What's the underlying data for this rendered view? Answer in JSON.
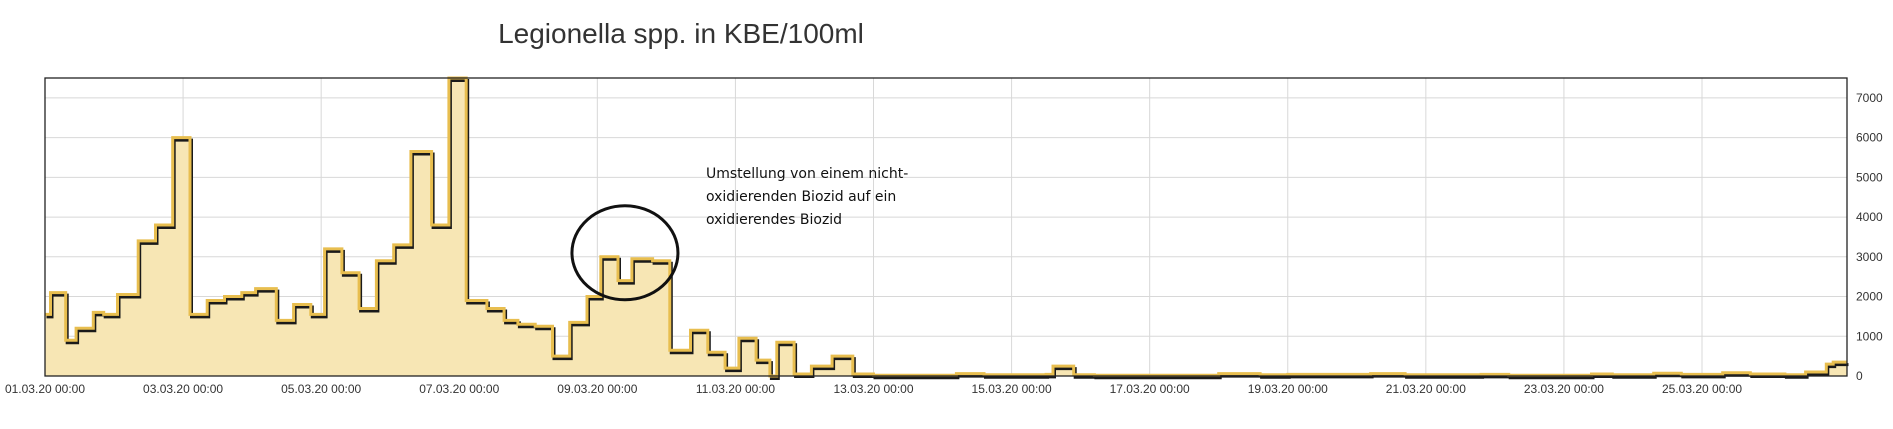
{
  "chart_data": {
    "type": "area",
    "title": "Legionella spp. in KBE/100ml",
    "xlabel": "",
    "ylabel": "",
    "ylim": [
      0,
      7500
    ],
    "xlim": [
      0,
      26.1
    ],
    "grid": true,
    "y_axis_side": "right",
    "line_style": "step",
    "colors": {
      "fill": "#f7e6b4",
      "line": "#e8be4f",
      "shadow": "#1a1a1a"
    },
    "y_ticks": [
      "0",
      "1000",
      "2000",
      "3000",
      "4000",
      "5000",
      "6000",
      "7000"
    ],
    "x_ticks": [
      {
        "day": 0,
        "label": "01.03.20 00:00"
      },
      {
        "day": 2,
        "label": "03.03.20 00:00"
      },
      {
        "day": 4,
        "label": "05.03.20 00:00"
      },
      {
        "day": 6,
        "label": "07.03.20 00:00"
      },
      {
        "day": 8,
        "label": "09.03.20 00:00"
      },
      {
        "day": 10,
        "label": "11.03.20 00:00"
      },
      {
        "day": 12,
        "label": "13.03.20 00:00"
      },
      {
        "day": 14,
        "label": "15.03.20 00:00"
      },
      {
        "day": 16,
        "label": "17.03.20 00:00"
      },
      {
        "day": 18,
        "label": "19.03.20 00:00"
      },
      {
        "day": 20,
        "label": "21.03.20 00:00"
      },
      {
        "day": 22,
        "label": "23.03.20 00:00"
      },
      {
        "day": 24,
        "label": "25.03.20 00:00"
      }
    ],
    "series": [
      {
        "values": [
          [
            0.0,
            1550
          ],
          [
            0.08,
            2100
          ],
          [
            0.3,
            900
          ],
          [
            0.45,
            1200
          ],
          [
            0.7,
            1600
          ],
          [
            0.85,
            1550
          ],
          [
            1.05,
            2050
          ],
          [
            1.35,
            3400
          ],
          [
            1.6,
            3800
          ],
          [
            1.85,
            6000
          ],
          [
            2.1,
            1550
          ],
          [
            2.35,
            1900
          ],
          [
            2.6,
            2000
          ],
          [
            2.85,
            2100
          ],
          [
            3.05,
            2200
          ],
          [
            3.35,
            1400
          ],
          [
            3.6,
            1800
          ],
          [
            3.85,
            1550
          ],
          [
            4.05,
            3200
          ],
          [
            4.3,
            2600
          ],
          [
            4.55,
            1700
          ],
          [
            4.8,
            2900
          ],
          [
            5.05,
            3300
          ],
          [
            5.3,
            5650
          ],
          [
            5.6,
            3800
          ],
          [
            5.85,
            7500
          ],
          [
            6.1,
            1900
          ],
          [
            6.4,
            1700
          ],
          [
            6.65,
            1400
          ],
          [
            6.85,
            1300
          ],
          [
            7.1,
            1250
          ],
          [
            7.35,
            500
          ],
          [
            7.6,
            1350
          ],
          [
            7.85,
            2000
          ],
          [
            8.05,
            3000
          ],
          [
            8.3,
            2400
          ],
          [
            8.5,
            2950
          ],
          [
            8.8,
            2900
          ],
          [
            9.05,
            650
          ],
          [
            9.35,
            1150
          ],
          [
            9.6,
            600
          ],
          [
            9.85,
            200
          ],
          [
            10.05,
            950
          ],
          [
            10.3,
            400
          ],
          [
            10.5,
            0
          ],
          [
            10.6,
            850
          ],
          [
            10.85,
            50
          ],
          [
            11.1,
            250
          ],
          [
            11.4,
            500
          ],
          [
            11.7,
            50
          ],
          [
            12.0,
            20
          ],
          [
            13.2,
            60
          ],
          [
            13.6,
            30
          ],
          [
            14.5,
            40
          ],
          [
            14.6,
            250
          ],
          [
            14.9,
            30
          ],
          [
            15.2,
            20
          ],
          [
            17.0,
            60
          ],
          [
            17.6,
            30
          ],
          [
            18.0,
            40
          ],
          [
            19.2,
            60
          ],
          [
            19.7,
            30
          ],
          [
            20.8,
            40
          ],
          [
            21.2,
            20
          ],
          [
            22.4,
            50
          ],
          [
            22.7,
            30
          ],
          [
            23.3,
            70
          ],
          [
            23.7,
            40
          ],
          [
            24.3,
            80
          ],
          [
            24.7,
            50
          ],
          [
            25.2,
            30
          ],
          [
            25.5,
            100
          ],
          [
            25.8,
            300
          ],
          [
            25.9,
            350
          ]
        ]
      }
    ],
    "annotation": {
      "lines": [
        "Umstellung von einem nicht-",
        "oxidierenden Biozid auf ein",
        "oxidierendes Biozid"
      ],
      "circle_center": [
        8.4,
        3000
      ]
    }
  }
}
